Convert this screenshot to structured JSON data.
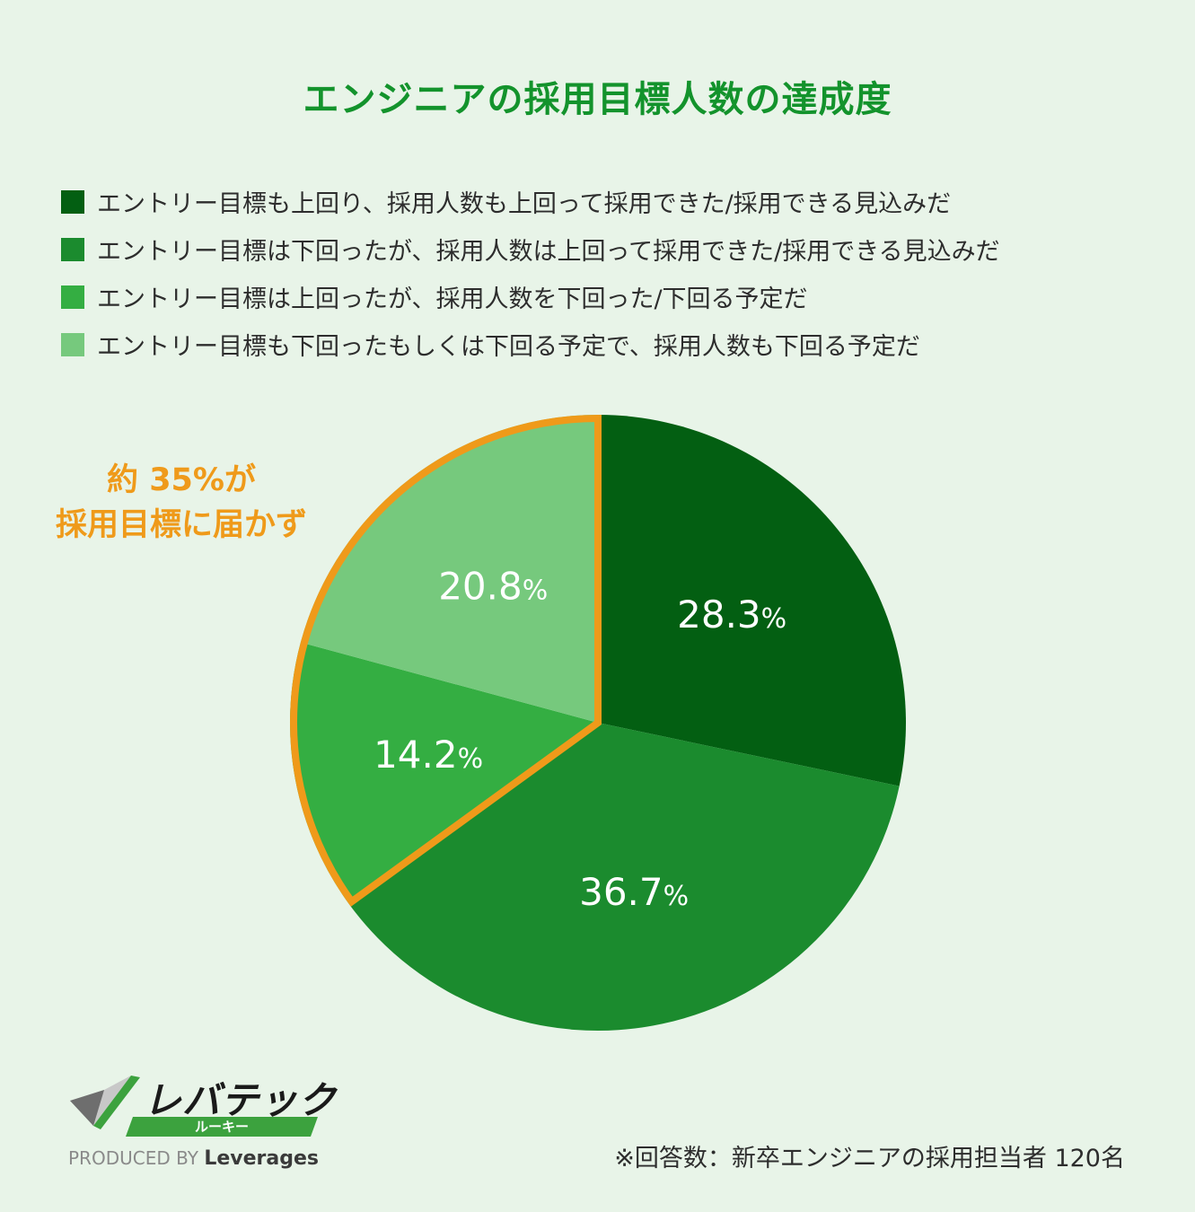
{
  "title": "エンジニアの採用目標人数の達成度",
  "legend": [
    {
      "label": "エントリー目標も上回り、採用人数も上回って採用できた/採用できる見込みだ",
      "color": "#035f12"
    },
    {
      "label": "エントリー目標は下回ったが、採用人数は上回って採用できた/採用できる見込みだ",
      "color": "#1b8b2e"
    },
    {
      "label": "エントリー目標は上回ったが、採用人数を下回った/下回る予定だ",
      "color": "#34ae42"
    },
    {
      "label": "エントリー目標も下回ったもしくは下回る予定で、採用人数も下回る予定だ",
      "color": "#76c97d"
    }
  ],
  "callout": {
    "line1": "約 35%が",
    "line2": "採用目標に届かず",
    "color": "#ef9a1a"
  },
  "chart_data": {
    "type": "pie",
    "title": "エンジニアの採用目標人数の達成度",
    "unit": "%",
    "slices": [
      {
        "label": "エントリー目標も上回り、採用人数も上回って採用できた/採用できる見込みだ",
        "value": 28.3,
        "display": "28.3",
        "color": "#035f12"
      },
      {
        "label": "エントリー目標は下回ったが、採用人数は上回って採用できた/採用できる見込みだ",
        "value": 36.7,
        "display": "36.7",
        "color": "#1b8b2e"
      },
      {
        "label": "エントリー目標は上回ったが、採用人数を下回った/下回る予定だ",
        "value": 14.2,
        "display": "14.2",
        "color": "#34ae42"
      },
      {
        "label": "エントリー目標も下回ったもしくは下回る予定で、採用人数も下回る予定だ",
        "value": 20.8,
        "display": "20.8",
        "color": "#76c97d"
      }
    ],
    "highlighted_slices": [
      2,
      3
    ],
    "highlight_color": "#ef9a1a",
    "legend_position": "top"
  },
  "logo": {
    "name": "レバテック",
    "sub": "ルーキー",
    "produced_by": "PRODUCED BY",
    "brand": "Leverages"
  },
  "note": "※回答数：新卒エンジニアの採用担当者 120名"
}
